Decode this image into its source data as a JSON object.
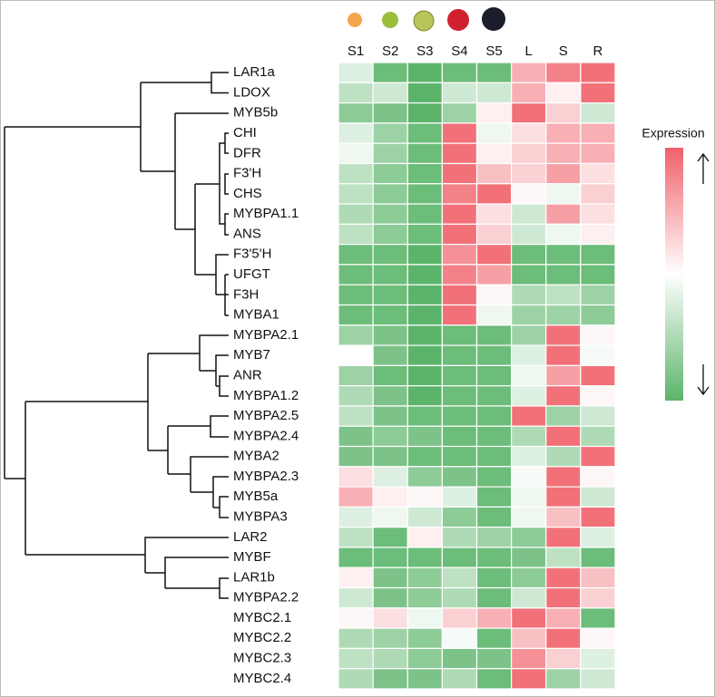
{
  "chart_data": {
    "type": "heatmap",
    "columns": [
      "S1",
      "S2",
      "S3",
      "S4",
      "S5",
      "L",
      "S",
      "R"
    ],
    "rows": [
      "LAR1a",
      "LDOX",
      "MYB5b",
      "CHI",
      "DFR",
      "F3'H",
      "CHS",
      "MYBPA1.1",
      "ANS",
      "F3'5'H",
      "UFGT",
      "F3H",
      "MYBA1",
      "MYBPA2.1",
      "MYB7",
      "ANR",
      "MYBPA1.2",
      "MYBPA2.5",
      "MYBPA2.4",
      "MYBA2",
      "MYBPA2.3",
      "MYB5a",
      "MYBPA3",
      "LAR2",
      "MYBF",
      "LAR1b",
      "MYBPA2.2",
      "MYBC2.1",
      "MYBC2.2",
      "MYBC2.3",
      "MYBC2.4"
    ],
    "values": [
      [
        -0.2,
        -0.9,
        -1,
        -0.9,
        -0.9,
        0.5,
        0.8,
        0.9
      ],
      [
        -0.4,
        -0.3,
        -1,
        -0.3,
        -0.3,
        0.5,
        0.1,
        0.9
      ],
      [
        -0.7,
        -0.8,
        -1,
        -0.6,
        0.1,
        0.9,
        0.3,
        -0.3
      ],
      [
        -0.2,
        -0.6,
        -0.9,
        0.9,
        -0.1,
        0.2,
        0.5,
        0.5
      ],
      [
        -0.1,
        -0.6,
        -0.9,
        0.9,
        0.1,
        0.3,
        0.5,
        0.5
      ],
      [
        -0.4,
        -0.7,
        -0.9,
        0.9,
        0.4,
        0.3,
        0.6,
        0.2
      ],
      [
        -0.4,
        -0.7,
        -0.9,
        0.8,
        0.9,
        0.05,
        -0.1,
        0.3
      ],
      [
        -0.5,
        -0.7,
        -0.9,
        0.9,
        0.2,
        -0.3,
        0.6,
        0.2
      ],
      [
        -0.4,
        -0.7,
        -0.9,
        0.9,
        0.3,
        -0.3,
        -0.1,
        0.1
      ],
      [
        -0.9,
        -0.9,
        -1,
        0.7,
        0.9,
        -0.9,
        -0.9,
        -0.9
      ],
      [
        -0.9,
        -0.9,
        -1,
        0.8,
        0.6,
        -0.9,
        -0.9,
        -0.9
      ],
      [
        -0.9,
        -0.9,
        -1,
        0.9,
        0.05,
        -0.5,
        -0.4,
        -0.6
      ],
      [
        -0.9,
        -0.9,
        -1,
        0.9,
        -0.1,
        -0.6,
        -0.6,
        -0.7
      ],
      [
        -0.6,
        -0.8,
        -1,
        -0.9,
        -0.9,
        -0.6,
        0.9,
        0.05
      ],
      [
        0,
        -0.8,
        -1,
        -0.9,
        -0.9,
        -0.2,
        0.9,
        -0.05
      ],
      [
        -0.6,
        -0.9,
        -1,
        -0.9,
        -0.9,
        -0.1,
        0.6,
        0.9
      ],
      [
        -0.5,
        -0.8,
        -1,
        -0.9,
        -0.9,
        -0.2,
        0.9,
        0.05
      ],
      [
        -0.4,
        -0.8,
        -0.9,
        -0.9,
        -0.9,
        0.9,
        -0.6,
        -0.3
      ],
      [
        -0.8,
        -0.7,
        -0.8,
        -0.9,
        -0.9,
        -0.5,
        0.9,
        -0.5
      ],
      [
        -0.8,
        -0.8,
        -0.9,
        -0.9,
        -0.9,
        -0.2,
        -0.5,
        0.9
      ],
      [
        0.2,
        -0.2,
        -0.7,
        -0.8,
        -0.9,
        -0.05,
        0.9,
        0.05
      ],
      [
        0.5,
        0.1,
        0.05,
        -0.2,
        -0.9,
        -0.1,
        0.9,
        -0.3
      ],
      [
        -0.2,
        -0.1,
        -0.3,
        -0.7,
        -0.9,
        -0.1,
        0.4,
        0.9
      ],
      [
        -0.4,
        -0.9,
        0.1,
        -0.5,
        -0.6,
        -0.7,
        0.9,
        -0.2
      ],
      [
        -0.9,
        -0.9,
        -0.9,
        -0.9,
        -0.9,
        -0.8,
        -0.4,
        -0.9
      ],
      [
        0.1,
        -0.8,
        -0.7,
        -0.4,
        -0.9,
        -0.7,
        0.9,
        0.4
      ],
      [
        -0.3,
        -0.8,
        -0.7,
        -0.5,
        -0.9,
        -0.3,
        0.9,
        0.3
      ],
      [
        0.05,
        0.2,
        -0.1,
        0.3,
        0.5,
        0.9,
        0.5,
        -0.9
      ],
      [
        -0.5,
        -0.6,
        -0.7,
        -0.05,
        -0.9,
        0.4,
        0.9,
        0.05
      ],
      [
        -0.4,
        -0.5,
        -0.7,
        -0.8,
        -0.8,
        0.7,
        0.3,
        -0.2
      ],
      [
        -0.5,
        -0.8,
        -0.8,
        -0.5,
        -0.9,
        0.9,
        -0.6,
        -0.3
      ]
    ],
    "clim": [
      -1,
      1
    ],
    "colors": {
      "low": "#5cb46b",
      "mid": "#ffffff",
      "high": "#f0616a"
    },
    "legend_title": "Expression"
  }
}
